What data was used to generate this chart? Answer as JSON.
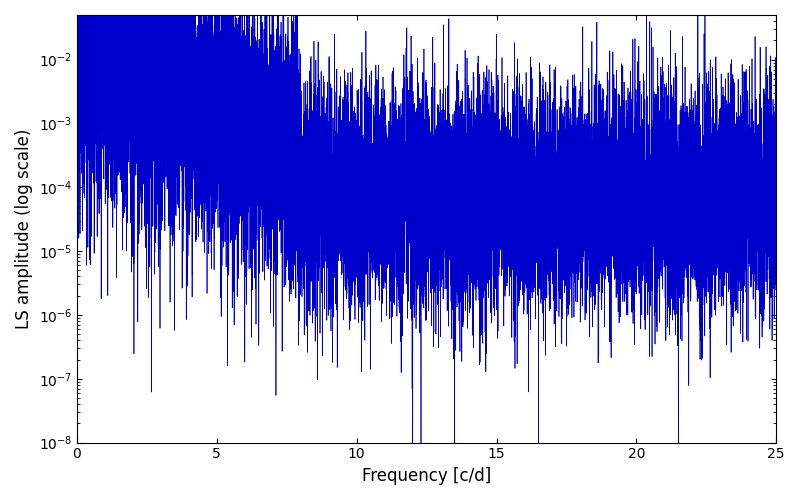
{
  "title": "",
  "xlabel": "Frequency [c/d]",
  "ylabel": "LS amplitude (log scale)",
  "xlim": [
    0,
    25
  ],
  "ylim": [
    1e-08,
    0.05
  ],
  "line_color": "#0000cc",
  "line_width": 0.5,
  "background_color": "#ffffff",
  "figsize": [
    8.0,
    5.0
  ],
  "dpi": 100,
  "freq_max": 25.0,
  "n_points": 15000,
  "seed": 12345
}
